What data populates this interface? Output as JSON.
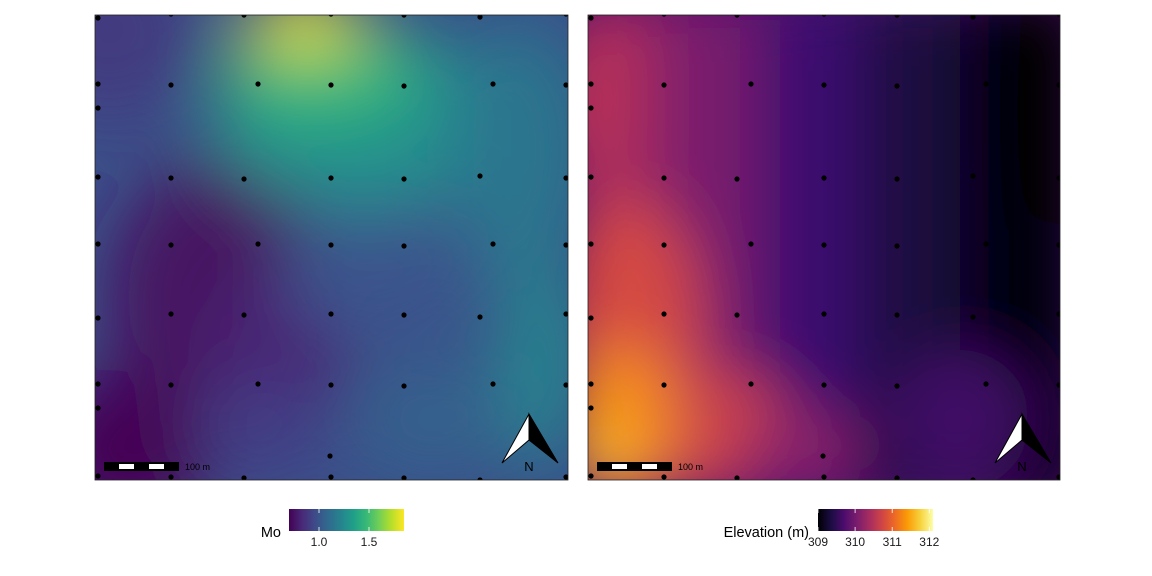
{
  "maps": [
    {
      "id": "mo",
      "legend_title": "Mo",
      "legend_ticks": [
        "1.0",
        "1.5"
      ],
      "legend_tick_values": [
        1.0,
        1.5
      ],
      "legend_range": [
        0.7,
        1.85
      ],
      "palette": "viridis",
      "palette_colors": [
        "#440154",
        "#482878",
        "#3e4a89",
        "#31688e",
        "#26828e",
        "#1f9e89",
        "#35b779",
        "#6ece58",
        "#b5de2b",
        "#fde725"
      ],
      "scale_bar_label": "100 m",
      "north_label": "N"
    },
    {
      "id": "elevation",
      "legend_title": "Elevation (m)",
      "legend_ticks": [
        "309",
        "310",
        "311",
        "312"
      ],
      "legend_tick_values": [
        309,
        310,
        311,
        312
      ],
      "legend_range": [
        309,
        312.1
      ],
      "palette": "inferno",
      "palette_colors": [
        "#000004",
        "#1b0c41",
        "#4a0c6b",
        "#781c6d",
        "#a52c60",
        "#cf4446",
        "#ed6925",
        "#fb9b06",
        "#f7d13d",
        "#fcffa4"
      ],
      "scale_bar_label": "100 m",
      "north_label": "N"
    }
  ]
}
